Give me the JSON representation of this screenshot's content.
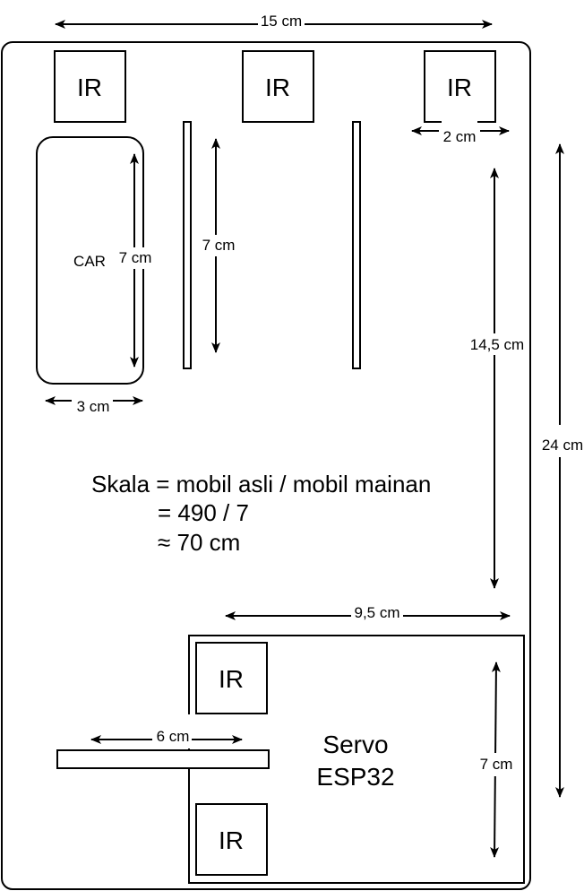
{
  "diagram": {
    "dimensions": {
      "top_width": "15 cm",
      "total_height": "24 cm",
      "car_length": "7 cm",
      "car_width": "3 cm",
      "lane_length": "7 cm",
      "sensor_gap": "2 cm",
      "track_length": "14,5 cm",
      "garage_width": "9,5 cm",
      "garage_height": "7 cm",
      "gate_length": "6 cm"
    },
    "sensors": {
      "ir_top_left": "IR",
      "ir_top_middle": "IR",
      "ir_top_right": "IR",
      "ir_garage_top": "IR",
      "ir_garage_bottom": "IR"
    },
    "car_label": "CAR",
    "formula": {
      "line1": "Skala = mobil asli / mobil mainan",
      "line2": "= 490 / 7",
      "line3": "≈ 70 cm"
    },
    "garage": {
      "line1": "Servo",
      "line2": "ESP32"
    }
  }
}
